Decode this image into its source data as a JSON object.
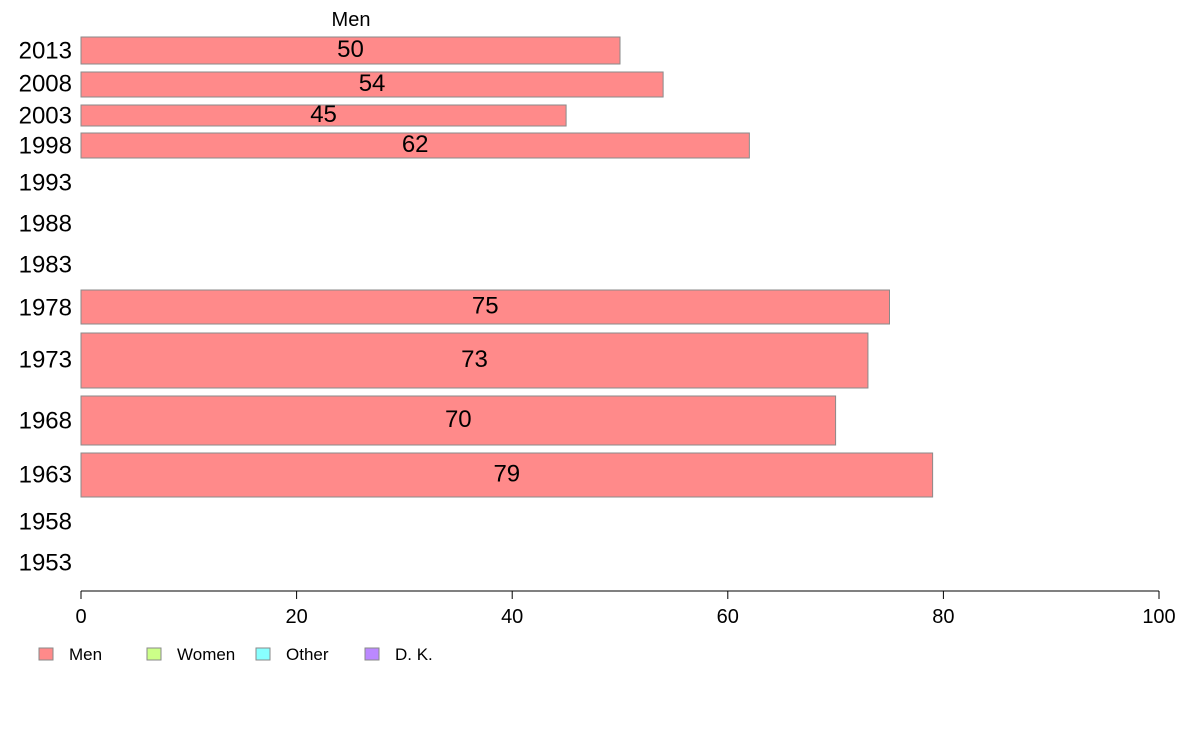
{
  "chart_data": {
    "type": "bar",
    "orientation": "horizontal",
    "categories": [
      "2013",
      "2008",
      "2003",
      "1998",
      "1993",
      "1988",
      "1983",
      "1978",
      "1973",
      "1968",
      "1963",
      "1958",
      "1953"
    ],
    "series": [
      {
        "name": "Men",
        "values": [
          50,
          54,
          45,
          62,
          null,
          null,
          null,
          75,
          73,
          70,
          79,
          null,
          null
        ],
        "color": "#ff8a8a"
      }
    ],
    "data_labels": [
      "50",
      "54",
      "45",
      "62",
      "",
      "",
      "",
      "75",
      "73",
      "70",
      "79",
      "",
      ""
    ],
    "series_label": "Men",
    "xlim": [
      0,
      100
    ],
    "xticks": [
      0,
      20,
      40,
      60,
      80,
      100
    ],
    "xlabel": "",
    "ylabel": "",
    "title": "",
    "grid": false,
    "legend": {
      "position": "bottom-left",
      "items": [
        {
          "label": "Men",
          "color": "#ff8a8a"
        },
        {
          "label": "Women",
          "color": "#ccff88"
        },
        {
          "label": "Other",
          "color": "#88ffff"
        },
        {
          "label": "D. K.",
          "color": "#bb88ff"
        }
      ]
    }
  }
}
